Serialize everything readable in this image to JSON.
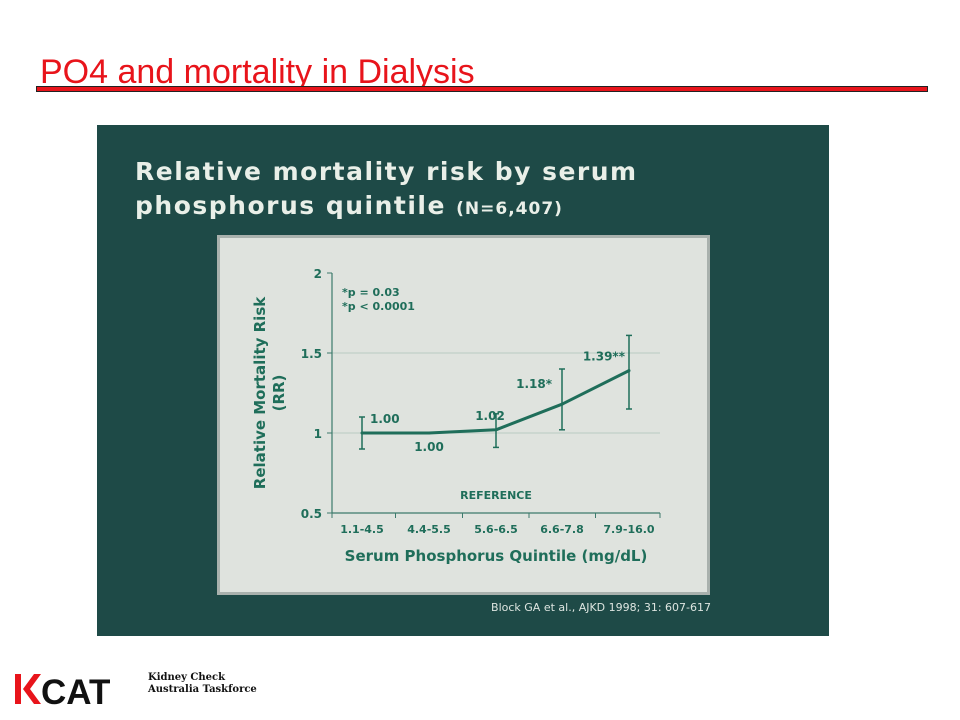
{
  "slide": {
    "title": "PO4 and mortality in Dialysis",
    "accent_color": "#e8141b",
    "panel_color": "#1e4a47"
  },
  "panel": {
    "title_line1": "Relative mortality risk by serum",
    "title_line2": "phosphorus quintile",
    "title_n": "(N=6,407)",
    "citation": "Block GA et al., AJKD 1998; 31: 607-617"
  },
  "chart_data": {
    "type": "line",
    "title": "Relative mortality risk by serum phosphorus quintile (N=6,407)",
    "xlabel": "Serum Phosphorus Quintile (mg/dL)",
    "ylabel": "Relative Mortality Risk (RR)",
    "categories": [
      "1.1-4.5",
      "4.4-5.5",
      "5.6-6.5",
      "6.6-7.8",
      "7.9-16.0"
    ],
    "values": [
      1.0,
      1.0,
      1.02,
      1.18,
      1.39
    ],
    "error_low": [
      0.9,
      null,
      0.91,
      1.02,
      1.15
    ],
    "error_high": [
      1.1,
      null,
      1.12,
      1.4,
      1.61
    ],
    "data_labels": [
      "1.00",
      "1.00",
      "1.02",
      "1.18*",
      "1.39**"
    ],
    "ylim": [
      0.5,
      2
    ],
    "yticks": [
      "0.5",
      "1",
      "1.5",
      "2"
    ],
    "gridlines": [
      1,
      1.5
    ],
    "annotations": [
      "*p = 0.03",
      "*p < 0.0001"
    ],
    "reference_label": "REFERENCE",
    "reference_category": "1.1-4.5",
    "line_color": "#1f6e5a"
  },
  "logo": {
    "mark": "KCAT",
    "line1": "Kidney Check",
    "line2": "Australia Taskforce",
    "color": "#e8141b"
  }
}
